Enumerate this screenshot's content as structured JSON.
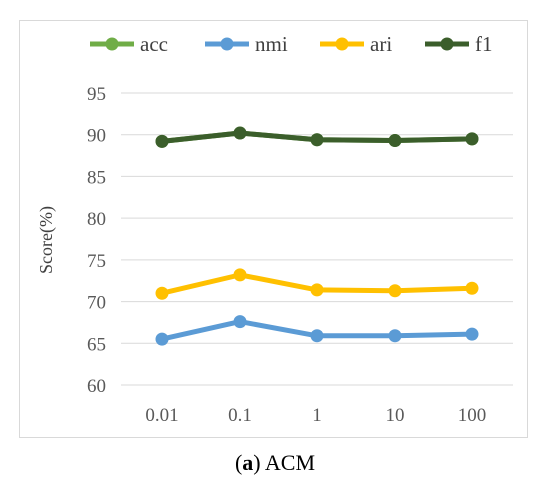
{
  "chart_data": {
    "type": "line",
    "categories": [
      "0.01",
      "0.1",
      "1",
      "10",
      "100"
    ],
    "ylabel": "Score(%)",
    "xlabel": "",
    "ylim": [
      60,
      95
    ],
    "yticks": [
      60,
      65,
      70,
      75,
      80,
      85,
      90,
      95
    ],
    "grid": true,
    "legend_position": "top",
    "series": [
      {
        "name": "acc",
        "color": "#70ad47",
        "values": [
          89.2,
          90.2,
          89.4,
          89.3,
          89.5
        ]
      },
      {
        "name": "nmi",
        "color": "#5b9bd5",
        "values": [
          65.5,
          67.6,
          65.9,
          65.9,
          66.1
        ]
      },
      {
        "name": "ari",
        "color": "#ffc000",
        "values": [
          71.0,
          73.2,
          71.4,
          71.3,
          71.6
        ]
      },
      {
        "name": "f1",
        "color": "#3b5e2b",
        "values": [
          89.2,
          90.2,
          89.4,
          89.3,
          89.5
        ]
      }
    ]
  },
  "caption": {
    "label": "a",
    "text": "ACM"
  }
}
